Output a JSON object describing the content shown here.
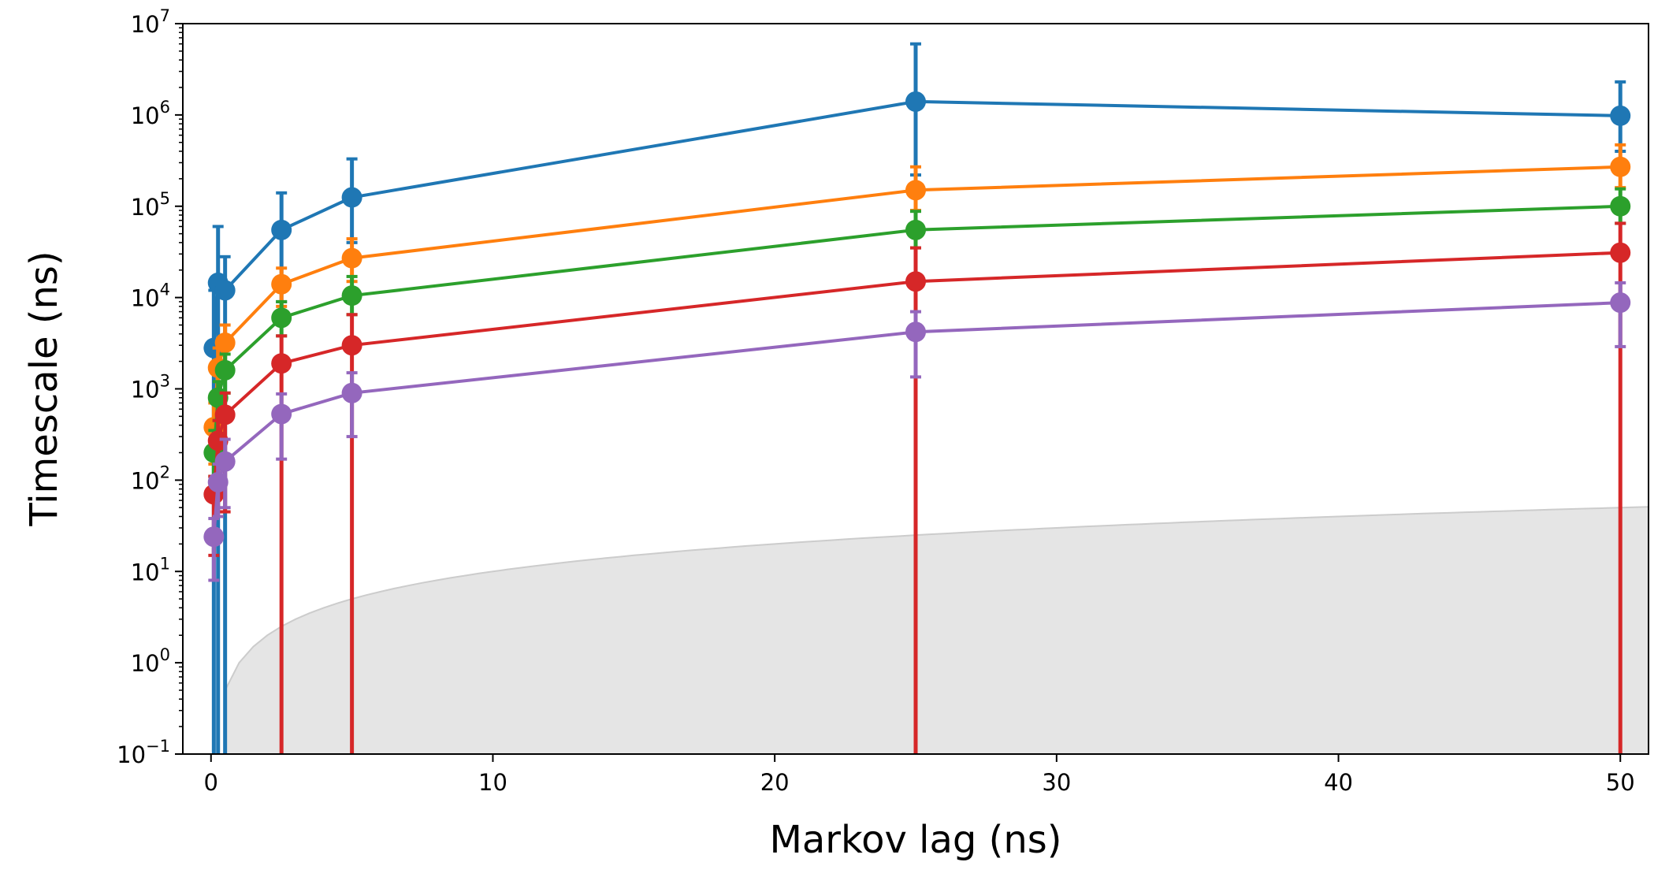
{
  "chart_data": {
    "type": "line",
    "title": "",
    "xlabel": "Markov lag (ns)",
    "ylabel": "Timescale (ns)",
    "xlim": [
      -1,
      51
    ],
    "ylim": [
      0.1,
      10000000
    ],
    "yscale": "log",
    "grid": false,
    "legend": "none",
    "x_ticks": [
      0,
      10,
      20,
      30,
      40,
      50
    ],
    "x_tick_labels": [
      "0",
      "10",
      "20",
      "30",
      "40",
      "50"
    ],
    "y_ticks": [
      {
        "value": 0.1,
        "base": "10",
        "exp": "−1"
      },
      {
        "value": 1,
        "base": "10",
        "exp": "0"
      },
      {
        "value": 10,
        "base": "10",
        "exp": "1"
      },
      {
        "value": 100,
        "base": "10",
        "exp": "2"
      },
      {
        "value": 1000,
        "base": "10",
        "exp": "3"
      },
      {
        "value": 10000,
        "base": "10",
        "exp": "4"
      },
      {
        "value": 100000,
        "base": "10",
        "exp": "5"
      },
      {
        "value": 1000000,
        "base": "10",
        "exp": "6"
      },
      {
        "value": 10000000,
        "base": "10",
        "exp": "7"
      }
    ],
    "x": [
      0.1,
      0.25,
      0.5,
      2.5,
      5,
      25,
      50
    ],
    "shaded_region": {
      "description": "lag-time boundary",
      "color": "#e5e5e5",
      "edge_color": "#cccccc"
    },
    "series": [
      {
        "color": "#1f77b4",
        "y": [
          2800,
          14500,
          12000,
          55000,
          125000,
          1400000,
          980000
        ],
        "low": [
          0.05,
          0.05,
          0.05,
          9000,
          40000,
          220000,
          400000
        ],
        "high": [
          12000,
          60000,
          28000,
          140000,
          330000,
          6000000,
          2300000
        ]
      },
      {
        "color": "#ff7f0e",
        "y": [
          380,
          1700,
          3200,
          14000,
          27000,
          150000,
          270000
        ],
        "low": [
          150,
          700,
          1500,
          8000,
          15000,
          90000,
          160000
        ],
        "high": [
          700,
          2800,
          5000,
          21000,
          44000,
          270000,
          470000
        ]
      },
      {
        "color": "#2ca02c",
        "y": [
          200,
          800,
          1600,
          6000,
          10500,
          55000,
          100000
        ],
        "low": [
          110,
          450,
          900,
          3800,
          6500,
          35000,
          65000
        ],
        "high": [
          350,
          1200,
          2400,
          9000,
          17000,
          88000,
          155000
        ]
      },
      {
        "color": "#d62728",
        "y": [
          70,
          270,
          520,
          1900,
          3000,
          15000,
          31000
        ],
        "low": [
          15,
          45,
          45,
          0.05,
          0.05,
          0.05,
          0.05
        ],
        "high": [
          110,
          450,
          900,
          3800,
          6500,
          35000,
          65000
        ]
      },
      {
        "color": "#9467bd",
        "y": [
          24,
          95,
          160,
          530,
          900,
          4200,
          8800
        ],
        "low": [
          8,
          40,
          50,
          170,
          300,
          1350,
          2900
        ],
        "high": [
          38,
          150,
          280,
          880,
          1500,
          7000,
          14500
        ]
      }
    ]
  }
}
